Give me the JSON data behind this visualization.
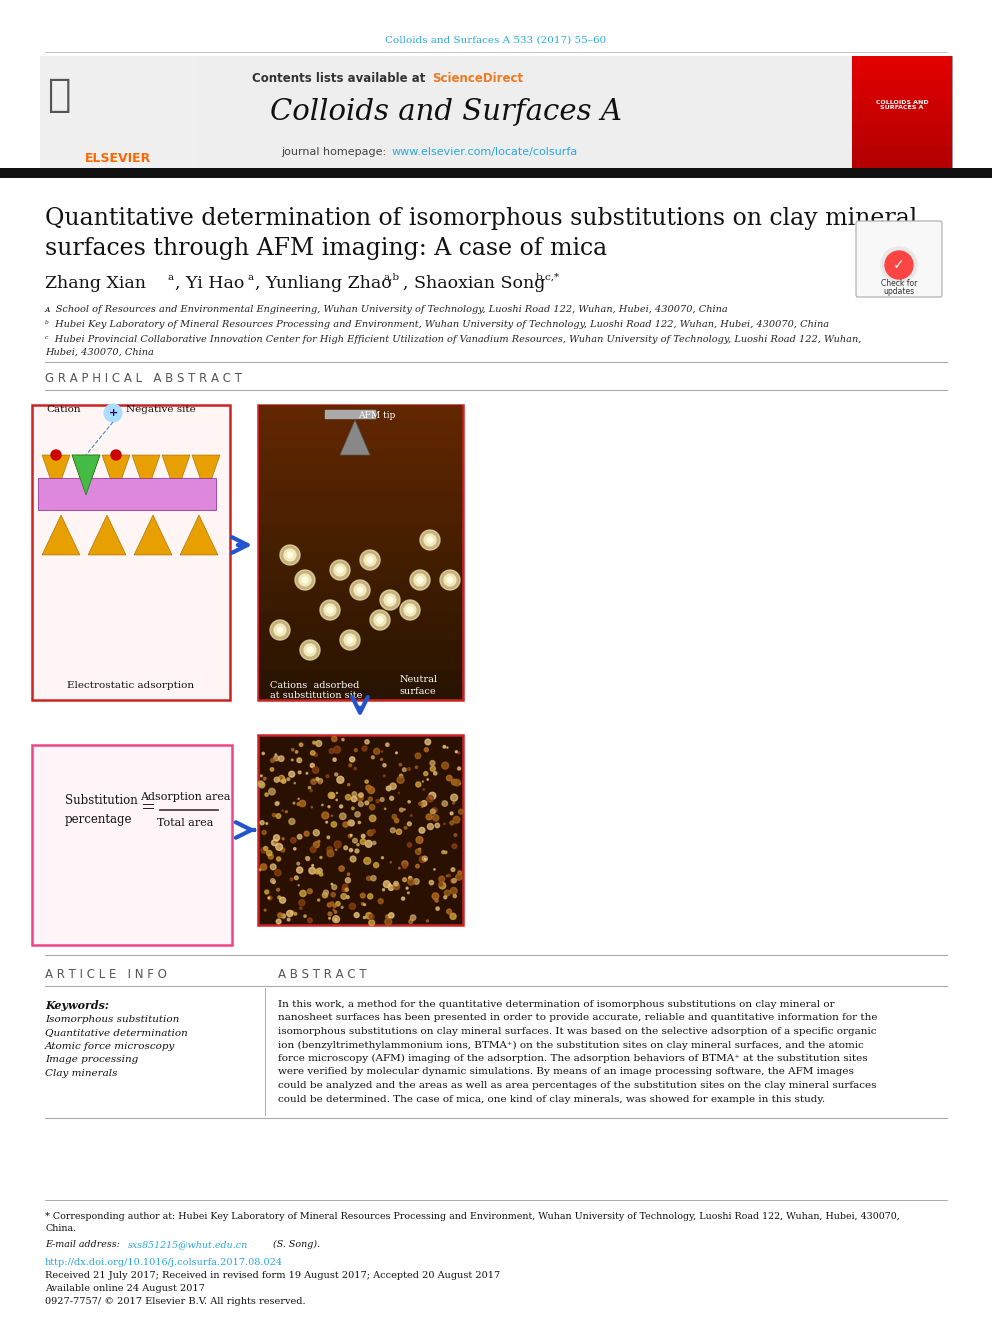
{
  "page_bg": "#ffffff",
  "top_journal_ref": "Colloids and Surfaces A 533 (2017) 55–60",
  "top_journal_ref_color": "#29a8e0",
  "header_bg": "#eeeeee",
  "journal_name": "Colloids and Surfaces A",
  "journal_homepage_url": "www.elsevier.com/locate/colsurfa",
  "journal_homepage_url_color": "#29a8e0",
  "black_bar_color": "#1a1a1a",
  "keywords": [
    "Isomorphous substitution",
    "Quantitative determination",
    "Atomic force microscopy",
    "Image processing",
    "Clay minerals"
  ],
  "abstract_lines": [
    "In this work, a method for the quantitative determination of isomorphous substitutions on clay mineral or",
    "nanosheet surfaces has been presented in order to provide accurate, reliable and quantitative information for the",
    "isomorphous substitutions on clay mineral surfaces. It was based on the selective adsorption of a specific organic",
    "ion (benzyltrimethylammonium ions, BTMA⁺) on the substitution sites on clay mineral surfaces, and the atomic",
    "force microscopy (AFM) imaging of the adsorption. The adsorption behaviors of BTMA⁺ at the substitution sites",
    "were verified by molecular dynamic simulations. By means of an image processing software, the AFM images",
    "could be analyzed and the areas as well as area percentages of the substitution sites on the clay mineral surfaces",
    "could be determined. The case of mica, one kind of clay minerals, was showed for example in this study."
  ],
  "footer_received": "Received 21 July 2017; Received in revised form 19 August 2017; Accepted 20 August 2017",
  "footer_online": "Available online 24 August 2017",
  "footer_copyright": "0927-7757/ © 2017 Elsevier B.V. All rights reserved.",
  "footer_doi": "http://dx.doi.org/10.1016/j.colsurfa.2017.08.024",
  "footer_email": "sxs851215@whut.edu.cn"
}
